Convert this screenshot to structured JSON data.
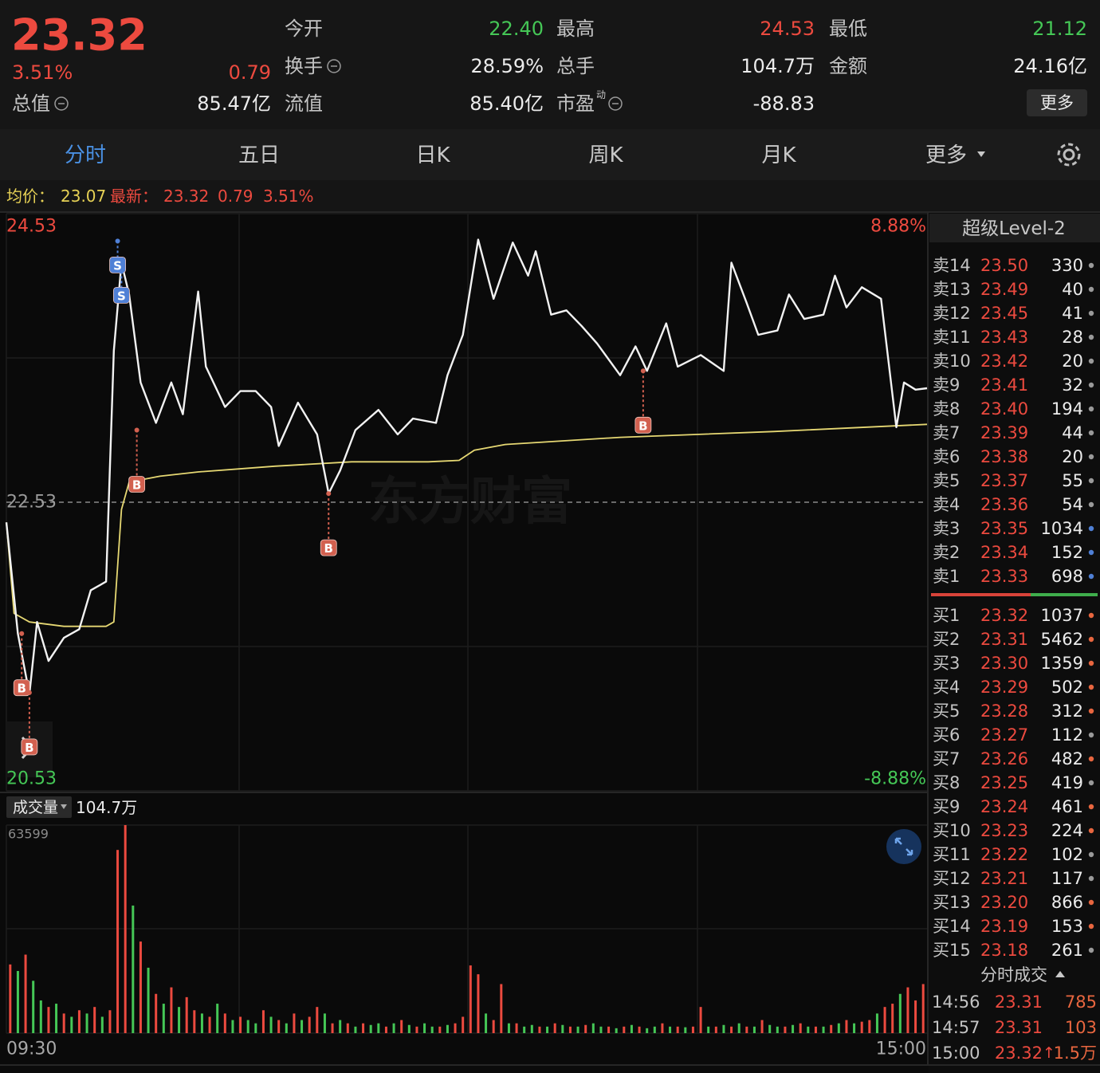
{
  "quote": {
    "price": "23.32",
    "pct": "3.51%",
    "change": "0.79"
  },
  "fields": [
    {
      "label": "今开",
      "value": "22.40",
      "color": "#45c756"
    },
    {
      "label": "最高",
      "value": "24.53",
      "color": "#ec4a3f"
    },
    {
      "label": "最低",
      "value": "21.12",
      "color": "#45c756"
    },
    {
      "label": "换手",
      "value": "28.59%",
      "color": "#ececec",
      "info": true
    },
    {
      "label": "总手",
      "value": "104.7万",
      "color": "#ececec"
    },
    {
      "label": "金额",
      "value": "24.16亿",
      "color": "#ececec"
    },
    {
      "label": "总值",
      "value": "85.47亿",
      "color": "#ececec",
      "info": true
    },
    {
      "label": "流值",
      "value": "85.40亿",
      "color": "#ececec"
    },
    {
      "label": "市盈",
      "sup": "动",
      "value": "-88.83",
      "color": "#ececec",
      "info": true
    }
  ],
  "more_button": "更多",
  "tabs": [
    "分时",
    "五日",
    "日K",
    "周K",
    "月K",
    "更多"
  ],
  "active_tab": 0,
  "summary": {
    "avg_label": "均价：",
    "avg": "23.07",
    "last_label": "最新：",
    "last": "23.32",
    "change": "0.79",
    "pct": "3.51%"
  },
  "watermark": "东方财富",
  "chart_data": [
    {
      "type": "line",
      "xlim": [
        0,
        240
      ],
      "ylim": [
        20.53,
        24.53
      ],
      "yticks": [
        24.53,
        22.53,
        20.53
      ],
      "ytick_colors": [
        "#ec4a3f",
        "#9a9a9a",
        "#45c756"
      ],
      "y2lim": [
        -8.88,
        8.88
      ],
      "y2ticks": [
        {
          "value": 8.88,
          "label": "8.88%"
        },
        {
          "value": -8.88,
          "label": "-8.88%"
        }
      ],
      "y2tick_colors": [
        "#ec4a3f",
        "#45c756"
      ],
      "grid": true,
      "series": [
        {
          "color": "#f2f2f2",
          "x": [
            0,
            3,
            6,
            8,
            11,
            15,
            19,
            22,
            26,
            28,
            30,
            32,
            35,
            39,
            43,
            46,
            50,
            52,
            57,
            61,
            65,
            69,
            71,
            76,
            81,
            84,
            87,
            91,
            97,
            102,
            106,
            112,
            115,
            119,
            123,
            127,
            132,
            136,
            138,
            142,
            146,
            150,
            154,
            160,
            164,
            167,
            172,
            175,
            181,
            187,
            189,
            193,
            196,
            201,
            204,
            208,
            213,
            216,
            219,
            223,
            228,
            232,
            234,
            237,
            240
          ],
          "values": [
            22.39,
            21.62,
            21.2,
            21.7,
            21.43,
            21.59,
            21.65,
            21.92,
            21.98,
            23.58,
            24.19,
            23.97,
            23.36,
            23.08,
            23.36,
            23.14,
            23.99,
            23.47,
            23.19,
            23.3,
            23.3,
            23.19,
            22.92,
            23.22,
            23.0,
            22.59,
            22.75,
            23.03,
            23.17,
            23.0,
            23.11,
            23.08,
            23.41,
            23.69,
            24.35,
            23.94,
            24.33,
            24.1,
            24.27,
            23.83,
            23.86,
            23.75,
            23.63,
            23.41,
            23.61,
            23.44,
            23.77,
            23.47,
            23.55,
            23.44,
            24.19,
            23.91,
            23.69,
            23.72,
            23.97,
            23.8,
            23.83,
            24.1,
            23.88,
            24.02,
            23.94,
            23.05,
            23.36,
            23.31,
            23.32
          ]
        },
        {
          "color": "#e6d873",
          "x": [
            0,
            2,
            6,
            15,
            26,
            28,
            30,
            32,
            40,
            50,
            70,
            90,
            110,
            118,
            122,
            130,
            160,
            200,
            240
          ],
          "values": [
            22.39,
            21.76,
            21.7,
            21.67,
            21.67,
            21.7,
            22.48,
            22.67,
            22.71,
            22.74,
            22.78,
            22.81,
            22.81,
            22.82,
            22.89,
            22.93,
            22.98,
            23.02,
            23.07
          ]
        }
      ],
      "markers": [
        {
          "label": "S",
          "x": 29,
          "value": 24.34,
          "color": "#4f80d6"
        },
        {
          "label": "S",
          "x": 30,
          "value": 24.13,
          "color": "#4f80d6"
        },
        {
          "label": "B",
          "x": 34,
          "value": 23.03,
          "color": "#d2604f"
        },
        {
          "label": "B",
          "x": 84,
          "value": 22.59,
          "color": "#d2604f"
        },
        {
          "label": "B",
          "x": 166,
          "value": 23.44,
          "color": "#d2604f"
        },
        {
          "label": "B",
          "x": 4,
          "value": 21.62,
          "color": "#d2604f"
        },
        {
          "label": "B",
          "x": 6,
          "value": 21.21,
          "color": "#d2604f"
        }
      ]
    },
    {
      "type": "bar",
      "title": "成交量",
      "total": "104.7万",
      "xlim": [
        0,
        240
      ],
      "xticks": [
        {
          "value": 0,
          "label": "09:30"
        },
        {
          "value": 240,
          "label": "15:00"
        }
      ],
      "ylim": [
        0,
        63599
      ],
      "yticks": [
        63599
      ],
      "up_color": "#ec4a3f",
      "down_color": "#45c756",
      "values": [
        21000,
        19000,
        24000,
        16000,
        10000,
        8000,
        9000,
        6000,
        5000,
        7000,
        6000,
        8000,
        5000,
        7000,
        56000,
        63599,
        39000,
        28000,
        20000,
        12000,
        9000,
        14000,
        8000,
        11000,
        7000,
        6000,
        5000,
        9000,
        6000,
        4000,
        5000,
        4000,
        3000,
        7000,
        5000,
        4000,
        3000,
        6000,
        4000,
        5000,
        8000,
        6000,
        3000,
        4000,
        3000,
        2000,
        3000,
        2500,
        3000,
        2000,
        3000,
        4000,
        2500,
        2000,
        3000,
        2000,
        2000,
        2500,
        3000,
        5000,
        20700,
        18000,
        6000,
        4000,
        15000,
        3000,
        3000,
        2000,
        2500,
        2000,
        2000,
        3000,
        2500,
        2000,
        2000,
        2500,
        3000,
        2000,
        2000,
        1500,
        2000,
        2500,
        2000,
        1500,
        2000,
        3000,
        2000,
        2000,
        1800,
        2000,
        8000,
        2000,
        2000,
        2500,
        2000,
        3000,
        2000,
        2000,
        4000,
        2500,
        2000,
        2000,
        2500,
        3000,
        2000,
        2000,
        2000,
        2500,
        3000,
        4000,
        3000,
        3500,
        4000,
        6000,
        8000,
        9000,
        12000,
        14000,
        10000,
        15000
      ],
      "up": [
        true,
        false,
        true,
        false,
        false,
        true,
        false,
        true,
        false,
        true,
        false,
        true,
        false,
        true,
        true,
        true,
        false,
        true,
        false,
        true,
        false,
        true,
        false,
        true,
        true,
        false,
        true,
        false,
        true,
        false,
        true,
        false,
        false,
        true,
        false,
        true,
        false,
        true,
        false,
        true,
        true,
        false,
        true,
        false,
        true,
        false,
        true,
        false,
        false,
        true,
        false,
        true,
        false,
        true,
        false,
        false,
        true,
        false,
        true,
        true,
        true,
        true,
        false,
        true,
        true,
        false,
        true,
        false,
        false,
        true,
        false,
        true,
        false,
        true,
        false,
        true,
        false,
        false,
        true,
        false,
        true,
        false,
        true,
        false,
        false,
        true,
        false,
        true,
        false,
        true,
        true,
        false,
        true,
        false,
        true,
        false,
        true,
        false,
        true,
        false,
        false,
        true,
        false,
        true,
        false,
        true,
        false,
        true,
        false,
        true,
        false,
        true,
        true,
        false,
        true,
        true,
        false,
        true,
        true,
        true
      ]
    }
  ],
  "order_book": {
    "title": "超级Level-2",
    "sells": [
      {
        "label": "卖14",
        "price": "23.50",
        "qty": "330",
        "dot": "#9a9a9a"
      },
      {
        "label": "卖13",
        "price": "23.49",
        "qty": "40",
        "dot": "#9a9a9a"
      },
      {
        "label": "卖12",
        "price": "23.45",
        "qty": "41",
        "dot": "#9a9a9a"
      },
      {
        "label": "卖11",
        "price": "23.43",
        "qty": "28",
        "dot": "#9a9a9a"
      },
      {
        "label": "卖10",
        "price": "23.42",
        "qty": "20",
        "dot": "#9a9a9a"
      },
      {
        "label": "卖9",
        "price": "23.41",
        "qty": "32",
        "dot": "#9a9a9a"
      },
      {
        "label": "卖8",
        "price": "23.40",
        "qty": "194",
        "dot": "#9a9a9a"
      },
      {
        "label": "卖7",
        "price": "23.39",
        "qty": "44",
        "dot": "#9a9a9a"
      },
      {
        "label": "卖6",
        "price": "23.38",
        "qty": "20",
        "dot": "#9a9a9a"
      },
      {
        "label": "卖5",
        "price": "23.37",
        "qty": "55",
        "dot": "#9a9a9a"
      },
      {
        "label": "卖4",
        "price": "23.36",
        "qty": "54",
        "dot": "#9a9a9a"
      },
      {
        "label": "卖3",
        "price": "23.35",
        "qty": "1034",
        "dot": "#4f80d6"
      },
      {
        "label": "卖2",
        "price": "23.34",
        "qty": "152",
        "dot": "#4f80d6"
      },
      {
        "label": "卖1",
        "price": "23.33",
        "qty": "698",
        "dot": "#4f80d6"
      }
    ],
    "buys": [
      {
        "label": "买1",
        "price": "23.32",
        "qty": "1037",
        "dot": "#e8663f"
      },
      {
        "label": "买2",
        "price": "23.31",
        "qty": "5462",
        "dot": "#e8663f"
      },
      {
        "label": "买3",
        "price": "23.30",
        "qty": "1359",
        "dot": "#e8663f"
      },
      {
        "label": "买4",
        "price": "23.29",
        "qty": "502",
        "dot": "#e8663f"
      },
      {
        "label": "买5",
        "price": "23.28",
        "qty": "312",
        "dot": "#e8663f"
      },
      {
        "label": "买6",
        "price": "23.27",
        "qty": "112",
        "dot": "#9a9a9a"
      },
      {
        "label": "买7",
        "price": "23.26",
        "qty": "482",
        "dot": "#e8663f"
      },
      {
        "label": "买8",
        "price": "23.25",
        "qty": "419",
        "dot": "#9a9a9a"
      },
      {
        "label": "买9",
        "price": "23.24",
        "qty": "461",
        "dot": "#e8663f"
      },
      {
        "label": "买10",
        "price": "23.23",
        "qty": "224",
        "dot": "#e8663f"
      },
      {
        "label": "买11",
        "price": "23.22",
        "qty": "102",
        "dot": "#9a9a9a"
      },
      {
        "label": "买12",
        "price": "23.21",
        "qty": "117",
        "dot": "#9a9a9a"
      },
      {
        "label": "买13",
        "price": "23.20",
        "qty": "866",
        "dot": "#e8663f"
      },
      {
        "label": "买14",
        "price": "23.19",
        "qty": "153",
        "dot": "#e8663f"
      },
      {
        "label": "买15",
        "price": "23.18",
        "qty": "261",
        "dot": "#9a9a9a"
      }
    ]
  },
  "trades": {
    "title": "分时成交",
    "rows": [
      {
        "time": "14:56",
        "price": "23.31",
        "qty": "785"
      },
      {
        "time": "14:57",
        "price": "23.31",
        "qty": "103"
      },
      {
        "time": "15:00",
        "price": "23.32",
        "arrow": "↑",
        "qty": "1.5万"
      }
    ]
  }
}
